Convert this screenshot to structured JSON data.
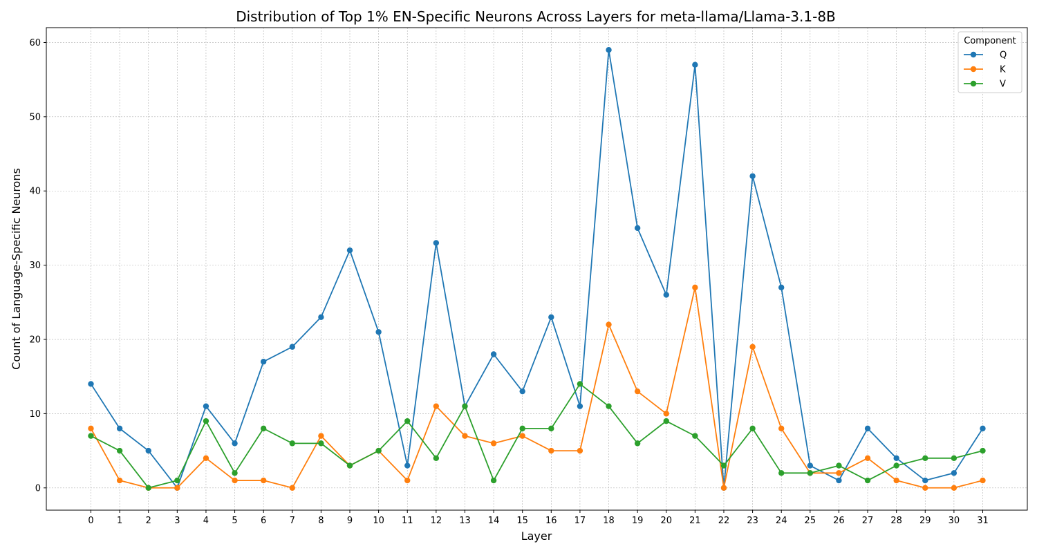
{
  "chart_data": {
    "type": "line",
    "title": "Distribution of Top 1% EN-Specific Neurons Across Layers for meta-llama/Llama-3.1-8B",
    "xlabel": "Layer",
    "ylabel": "Count of Language-Specific Neurons",
    "x": [
      0,
      1,
      2,
      3,
      4,
      5,
      6,
      7,
      8,
      9,
      10,
      11,
      12,
      13,
      14,
      15,
      16,
      17,
      18,
      19,
      20,
      21,
      22,
      23,
      24,
      25,
      26,
      27,
      28,
      29,
      30,
      31
    ],
    "xlim": [
      -1.55,
      32.55
    ],
    "ylim": [
      -3,
      62
    ],
    "yticks": [
      0,
      10,
      20,
      30,
      40,
      50,
      60
    ],
    "grid": true,
    "legend": {
      "title": "Component",
      "placement": "top-right"
    },
    "series": [
      {
        "name": "Q",
        "color": "#1f77b4",
        "values": [
          14,
          8,
          5,
          0,
          11,
          6,
          17,
          19,
          23,
          32,
          21,
          3,
          33,
          11,
          18,
          13,
          23,
          11,
          59,
          35,
          26,
          57,
          0,
          42,
          27,
          3,
          1,
          8,
          4,
          1,
          2,
          8
        ]
      },
      {
        "name": "K",
        "color": "#ff7f0e",
        "values": [
          8,
          1,
          0,
          0,
          4,
          1,
          1,
          0,
          7,
          3,
          5,
          1,
          11,
          7,
          6,
          7,
          5,
          5,
          22,
          13,
          10,
          27,
          0,
          19,
          8,
          2,
          2,
          4,
          1,
          0,
          0,
          1
        ]
      },
      {
        "name": "V",
        "color": "#2ca02c",
        "values": [
          7,
          5,
          0,
          1,
          9,
          2,
          8,
          6,
          6,
          3,
          5,
          9,
          4,
          11,
          1,
          8,
          8,
          14,
          11,
          6,
          9,
          7,
          3,
          8,
          2,
          2,
          3,
          1,
          3,
          4,
          4,
          5
        ]
      }
    ]
  }
}
